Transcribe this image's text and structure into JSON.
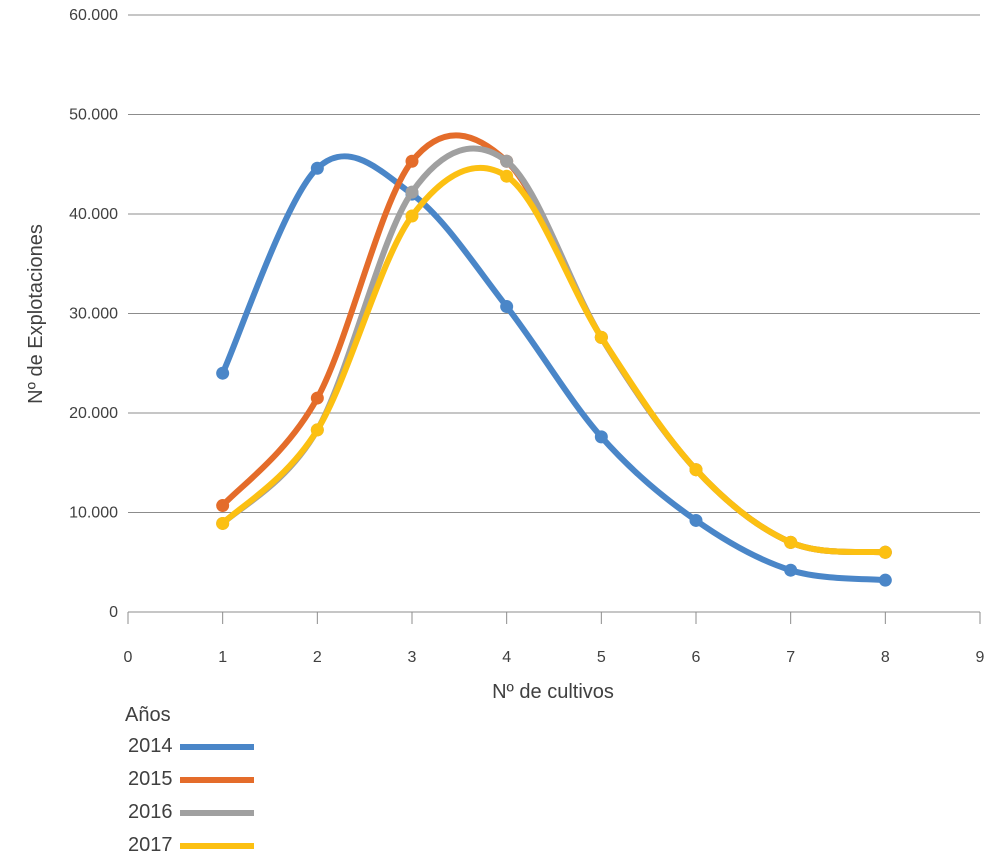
{
  "chart_data": {
    "type": "line",
    "xlabel": "Nº de cultivos",
    "ylabel": "Nº de Explotaciones",
    "xlim": [
      0,
      9
    ],
    "ylim": [
      0,
      60000
    ],
    "x_ticks": [
      "0",
      "1",
      "2",
      "3",
      "4",
      "5",
      "6",
      "7",
      "8",
      "9"
    ],
    "y_ticks": [
      "0",
      "10.000",
      "20.000",
      "30.000",
      "40.000",
      "50.000",
      "60.000"
    ],
    "grid": "horizontal",
    "smooth": true,
    "legend_title": "Años",
    "legend_position": "bottom-left",
    "x": [
      1,
      2,
      3,
      4,
      5,
      6,
      7,
      8
    ],
    "series": [
      {
        "name": "2014",
        "color": "#4a86c8",
        "values": [
          24000,
          44600,
          42000,
          30700,
          17600,
          9200,
          4200,
          3200
        ]
      },
      {
        "name": "2015",
        "color": "#e46c2a",
        "values": [
          10700,
          21500,
          45300,
          45300,
          27600,
          14300,
          7000,
          6000
        ]
      },
      {
        "name": "2016",
        "color": "#a0a0a0",
        "values": [
          8900,
          18300,
          42200,
          45300,
          27600,
          14300,
          7000,
          6000
        ]
      },
      {
        "name": "2017",
        "color": "#fcc012",
        "values": [
          8900,
          18300,
          39800,
          43800,
          27600,
          14300,
          7000,
          6000
        ]
      }
    ]
  }
}
